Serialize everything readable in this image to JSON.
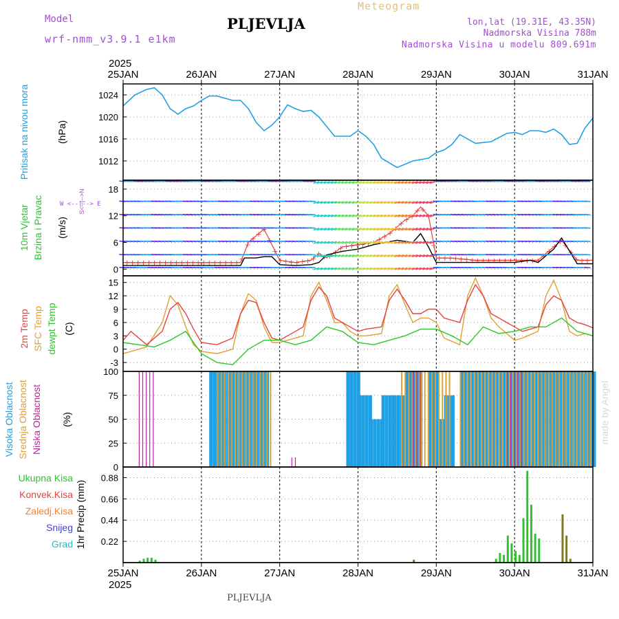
{
  "header": {
    "model_label": "Model",
    "model_name": "wrf-nmm_v3.9.1 e1km",
    "station": "PLJEVLJA",
    "title": "Meteogram",
    "coords": "lon,lat (19.31E, 43.35N)",
    "elevation": "Nadmorska Visina 788m",
    "model_elevation": "Nadmorska Visina u modelu 809.691m",
    "footer_station": "PLJEVLJA",
    "credit": "made by Angel"
  },
  "colors": {
    "pressure": "#1ea0e6",
    "temp2m": "#e8403c",
    "sfc": "#e0a030",
    "dew": "#28c828",
    "high_cloud": "#1ea0e6",
    "mid_cloud": "#e0a030",
    "low_cloud": "#c020a0",
    "precip_total": "#30c030",
    "precip_frozen": "#807828",
    "wind_speed": "#000000",
    "gust": "#e8403c",
    "purple_text": "#a050d0",
    "title_orange": "#e8c070",
    "credit": "#d8d8d8"
  },
  "time_axis": {
    "year": "2025",
    "labels": [
      "25JAN",
      "26JAN",
      "27JAN",
      "28JAN",
      "29JAN",
      "30JAN",
      "31JAN"
    ]
  },
  "panels": {
    "pressure": {
      "label": "Pritisak na nivou mora",
      "unit": "(hPa)"
    },
    "wind": {
      "label1": "10m Vjetar",
      "label2": "Brzina i Pravac",
      "unit": "(m/s)",
      "compass_n": "N",
      "compass_w": "W",
      "compass_e": "E",
      "compass_s": "S",
      "compass_row": "W <--|--> E",
      "compass_col": "S<--|-->N"
    },
    "temp": {
      "label_t2m": "2m Temp",
      "label_sfc": "SFC Temp",
      "label_dew": "dewpt Temp",
      "unit": "(C)"
    },
    "cloud": {
      "label_high": "Visoka Oblacnost",
      "label_mid": "Srednja Oblacnost",
      "label_low": "Niska Oblacnost",
      "unit": "(%)"
    },
    "precip": {
      "legend": [
        "Ukupna Kisa",
        "Konvek.Kisa",
        "Zaledj.Kisa",
        "Snijeg",
        "Grad"
      ],
      "legend_colors": [
        "#30c030",
        "#e8403c",
        "#f08030",
        "#4040e0",
        "#20c0c0"
      ],
      "unit": "1hr Precip (mm)"
    }
  },
  "chart_data": [
    {
      "type": "line",
      "title": "",
      "ylabel": "Pritisak na nivou mora (hPa)",
      "ylim": [
        1008.5,
        1026
      ],
      "yticks": [
        1012,
        1016,
        1020,
        1024
      ],
      "x_unit": "days since 25JAN 00",
      "series": [
        {
          "name": "Pritisak na nivou mora",
          "x": [
            0,
            0.15,
            0.3,
            0.4,
            0.5,
            0.6,
            0.7,
            0.8,
            0.9,
            1.0,
            1.1,
            1.2,
            1.3,
            1.4,
            1.5,
            1.6,
            1.7,
            1.8,
            1.9,
            2.0,
            2.1,
            2.2,
            2.3,
            2.4,
            2.5,
            2.7,
            2.9,
            3.0,
            3.1,
            3.2,
            3.3,
            3.5,
            3.7,
            3.9,
            4.0,
            4.1,
            4.2,
            4.3,
            4.5,
            4.7,
            4.9,
            5.0,
            5.1,
            5.2,
            5.3,
            5.4,
            5.5,
            5.6,
            5.7,
            5.8,
            5.9,
            6.0
          ],
          "values": [
            1022,
            1024,
            1025,
            1025.3,
            1024,
            1021.5,
            1020.5,
            1021.5,
            1022,
            1023,
            1023.8,
            1023.8,
            1023.4,
            1023,
            1023,
            1021.5,
            1019,
            1017.5,
            1018.5,
            1020,
            1022.2,
            1021.5,
            1021,
            1021.2,
            1020,
            1016.5,
            1016.5,
            1017.5,
            1016.5,
            1015,
            1012.5,
            1010.8,
            1012,
            1012.5,
            1013.5,
            1014,
            1015,
            1016.8,
            1015.2,
            1015.5,
            1017,
            1017.2,
            1016.8,
            1017.5,
            1017.5,
            1017.2,
            1017.8,
            1016.8,
            1015,
            1015.2,
            1018,
            1019.8
          ]
        }
      ]
    },
    {
      "type": "line",
      "title": "",
      "ylabel": "10m Vjetar Brzina i Pravac (m/s)",
      "ylim": [
        -1.5,
        20
      ],
      "yticks": [
        0,
        6,
        12,
        18
      ],
      "series": [
        {
          "name": "Brzina",
          "x": [
            0,
            0.5,
            1.0,
            1.5,
            1.55,
            1.7,
            1.8,
            1.9,
            2.0,
            2.2,
            2.4,
            2.5,
            2.6,
            2.8,
            3.0,
            3.2,
            3.5,
            3.7,
            3.8,
            3.9,
            4.0,
            4.2,
            4.5,
            4.7,
            5.0,
            5.2,
            5.3,
            5.5,
            5.6,
            5.8,
            6.0
          ],
          "values": [
            0.8,
            0.8,
            0.8,
            0.8,
            2.5,
            2.5,
            2.8,
            2.8,
            1.0,
            0.8,
            1.0,
            1.5,
            3.2,
            4.0,
            4.5,
            5.5,
            6.5,
            6.0,
            8.0,
            5.0,
            1.5,
            1.5,
            1.5,
            1.5,
            1.5,
            2.0,
            1.5,
            4.5,
            7.0,
            1.2,
            1.2
          ]
        },
        {
          "name": "Udari",
          "x": [
            0,
            0.5,
            1.0,
            1.5,
            1.6,
            1.8,
            2.0,
            2.2,
            2.4,
            2.5,
            2.6,
            2.8,
            3.0,
            3.2,
            3.4,
            3.6,
            3.7,
            3.8,
            3.9,
            4.0,
            4.2,
            4.5,
            4.8,
            5.0,
            5.3,
            5.5,
            5.6,
            5.8,
            6.0
          ],
          "values": [
            1.5,
            1.5,
            1.5,
            1.5,
            6,
            9,
            2.0,
            1.5,
            2.0,
            3.5,
            2.5,
            5,
            5.5,
            6,
            8,
            11,
            12,
            14,
            12,
            2.5,
            2.5,
            2.0,
            2.0,
            2.0,
            2.0,
            5,
            6.5,
            2.0,
            2.0
          ]
        }
      ]
    },
    {
      "type": "line",
      "title": "",
      "ylabel": "(C)",
      "ylim": [
        -5,
        16.5
      ],
      "yticks": [
        -3,
        0,
        3,
        6,
        9,
        12,
        15
      ],
      "series": [
        {
          "name": "2m Temp",
          "x": [
            0,
            0.1,
            0.3,
            0.5,
            0.6,
            0.7,
            0.8,
            0.9,
            1.0,
            1.2,
            1.4,
            1.5,
            1.6,
            1.7,
            1.8,
            1.9,
            2.0,
            2.1,
            2.3,
            2.4,
            2.5,
            2.6,
            2.7,
            2.8,
            2.9,
            3.0,
            3.1,
            3.3,
            3.4,
            3.5,
            3.6,
            3.7,
            3.8,
            3.9,
            4.0,
            4.1,
            4.3,
            4.4,
            4.5,
            4.6,
            4.7,
            4.8,
            4.9,
            5.0,
            5.1,
            5.3,
            5.4,
            5.5,
            5.6,
            5.7,
            5.8,
            5.9,
            6.0
          ],
          "values": [
            2,
            4,
            1,
            4,
            9,
            10.5,
            8,
            4.5,
            1.5,
            1,
            2.5,
            8,
            11,
            10.5,
            6,
            2.5,
            2,
            3,
            5,
            11,
            14,
            12,
            7,
            6,
            5,
            4,
            4.5,
            5,
            11,
            13.5,
            11,
            8,
            8,
            9,
            9,
            7,
            6,
            11,
            14.5,
            12,
            8,
            7,
            6,
            5,
            4,
            5,
            10,
            12,
            11,
            7,
            6,
            5.5,
            4.8
          ]
        },
        {
          "name": "SFC Temp",
          "x": [
            0,
            0.1,
            0.3,
            0.5,
            0.6,
            0.7,
            0.8,
            0.9,
            1.0,
            1.2,
            1.4,
            1.5,
            1.6,
            1.7,
            1.8,
            1.9,
            2.0,
            2.1,
            2.3,
            2.4,
            2.5,
            2.6,
            2.7,
            2.8,
            2.9,
            3.0,
            3.1,
            3.3,
            3.4,
            3.5,
            3.6,
            3.7,
            3.8,
            3.9,
            4.0,
            4.1,
            4.3,
            4.4,
            4.5,
            4.6,
            4.7,
            4.8,
            4.9,
            5.0,
            5.1,
            5.3,
            5.4,
            5.5,
            5.6,
            5.7,
            5.8,
            5.9,
            6.0
          ],
          "values": [
            -1,
            -0.5,
            0.5,
            6,
            12,
            10,
            5,
            1,
            -0.5,
            -1,
            0,
            8,
            12.5,
            11,
            5,
            1.5,
            1.5,
            2,
            3,
            12,
            15,
            11,
            6,
            6,
            4,
            3,
            3,
            3.5,
            12,
            14.5,
            10,
            6,
            7,
            7,
            6,
            2.5,
            1,
            12,
            16,
            12,
            7,
            5,
            3.5,
            2,
            2.5,
            4,
            12,
            15.5,
            11,
            4,
            3,
            3.5,
            3
          ]
        },
        {
          "name": "dewpt Temp",
          "x": [
            0,
            0.2,
            0.4,
            0.6,
            0.8,
            1.0,
            1.2,
            1.4,
            1.6,
            1.8,
            2.0,
            2.2,
            2.4,
            2.6,
            2.8,
            3.0,
            3.2,
            3.4,
            3.6,
            3.8,
            4.0,
            4.2,
            4.4,
            4.6,
            4.8,
            5.0,
            5.2,
            5.4,
            5.6,
            5.8,
            6.0
          ],
          "values": [
            1.5,
            1,
            0.5,
            2,
            4,
            -1,
            -3,
            -3.5,
            0,
            2,
            2,
            1,
            2,
            5,
            4,
            1.5,
            1,
            2,
            3,
            4.5,
            4.5,
            3,
            1,
            5,
            3.5,
            4,
            5,
            5,
            7,
            4,
            3
          ]
        }
      ]
    },
    {
      "type": "bar",
      "title": "",
      "ylabel": "(%)",
      "ylim": [
        0,
        100
      ],
      "yticks": [
        0,
        25,
        50,
        75,
        100
      ],
      "series": [
        {
          "name": "Visoka Oblacnost",
          "periods": [
            [
              1.1,
              1.85,
              100
            ],
            [
              2.85,
              3.0,
              100
            ],
            [
              3.0,
              3.15,
              75
            ],
            [
              3.15,
              3.3,
              50
            ],
            [
              3.3,
              3.45,
              75
            ],
            [
              3.45,
              3.6,
              75
            ],
            [
              3.6,
              3.8,
              100
            ],
            [
              3.9,
              4.0,
              100
            ],
            [
              4.0,
              4.1,
              50
            ],
            [
              4.1,
              4.2,
              75
            ],
            [
              4.3,
              5.0,
              100
            ],
            [
              5.0,
              5.5,
              100
            ],
            [
              5.5,
              6.0,
              100
            ]
          ]
        },
        {
          "name": "Srednja Oblacnost",
          "periods": [
            [
              1.2,
              1.9,
              100
            ],
            [
              3.55,
              3.8,
              100
            ],
            [
              3.8,
              4.2,
              100
            ],
            [
              4.3,
              6.0,
              100
            ]
          ]
        },
        {
          "name": "Niska Oblacnost",
          "periods": [
            [
              0.2,
              0.4,
              100
            ],
            [
              2.15,
              2.2,
              10
            ],
            [
              3.7,
              3.8,
              100
            ],
            [
              4.9,
              5.1,
              100
            ]
          ]
        }
      ]
    },
    {
      "type": "bar",
      "title": "",
      "ylabel": "1hr Precip (mm)",
      "ylim": [
        0,
        0.99
      ],
      "yticks": [
        0.22,
        0.44,
        0.66,
        0.88
      ],
      "series": [
        {
          "name": "Ukupna Kisa",
          "x": [
            0.2,
            0.25,
            0.3,
            0.35,
            0.4,
            4.75,
            4.8,
            4.85,
            4.9,
            4.95,
            5.0,
            5.05,
            5.1,
            5.15,
            5.2,
            5.25,
            5.3
          ],
          "values": [
            0.02,
            0.04,
            0.05,
            0.05,
            0.03,
            0.04,
            0.1,
            0.08,
            0.28,
            0.2,
            0.12,
            0.08,
            0.46,
            0.95,
            0.6,
            0.3,
            0.25
          ]
        },
        {
          "name": "Zaledj.Kisa",
          "x": [
            3.7,
            5.6,
            5.65,
            5.7
          ],
          "values": [
            0.03,
            0.5,
            0.28,
            0.04
          ]
        }
      ]
    }
  ]
}
